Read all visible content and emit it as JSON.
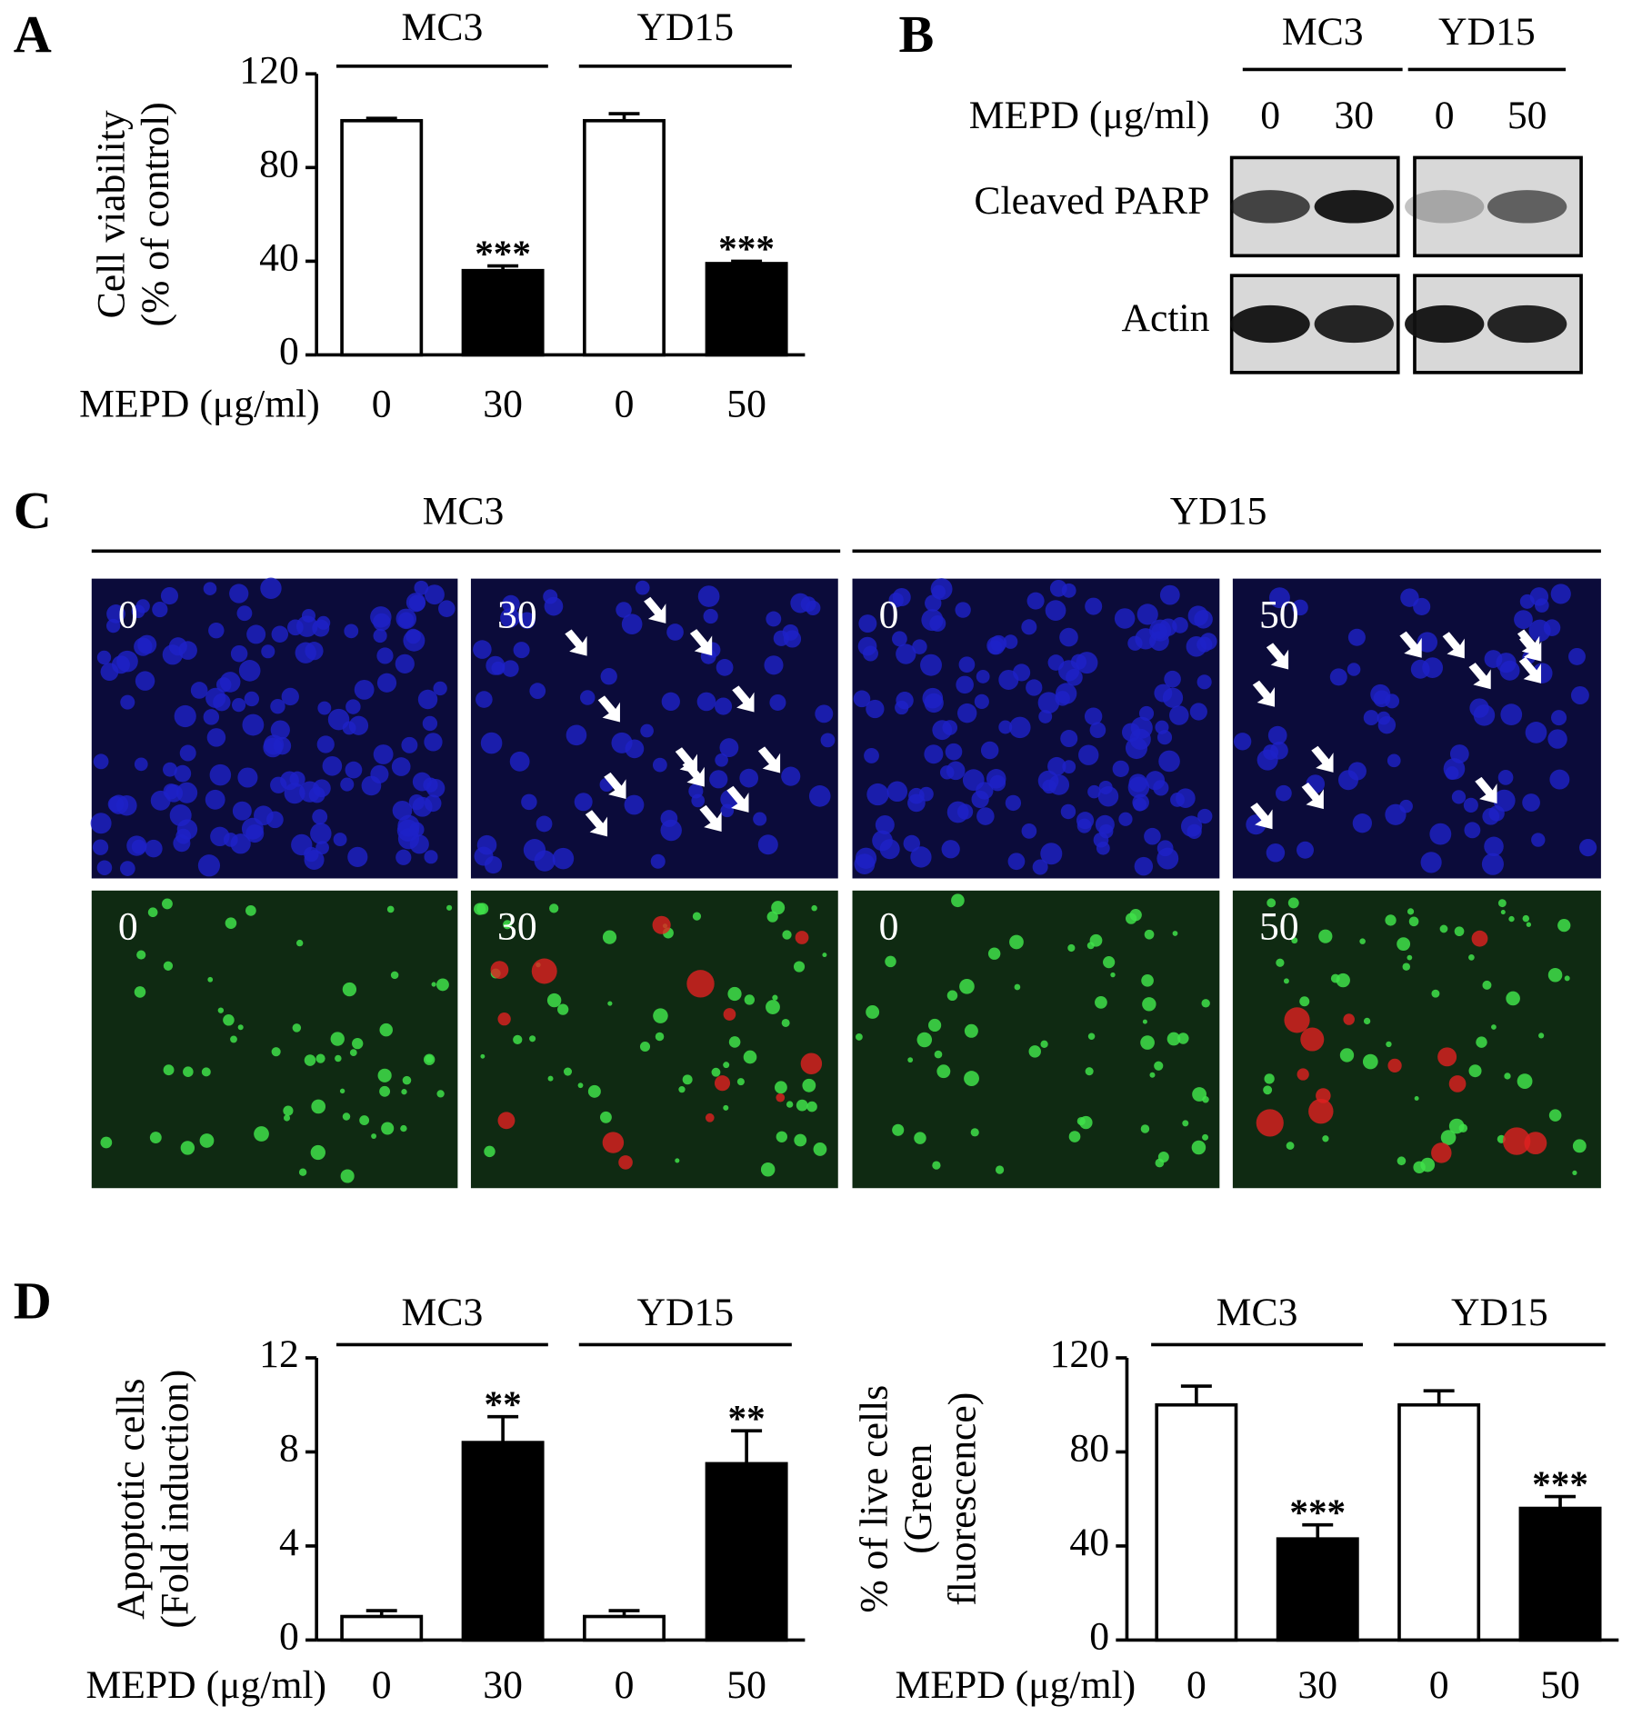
{
  "panel_labels": [
    "A",
    "B",
    "C",
    "D"
  ],
  "chart_data": [
    {
      "type": "bar",
      "ylabel": [
        "Cell viability",
        "(% of control)"
      ],
      "xlabel": "MEPD (μg/ml)",
      "groups": [
        "MC3",
        "YD15"
      ],
      "categories": [
        "0",
        "30",
        "0",
        "50"
      ],
      "values": [
        100,
        36,
        100,
        39
      ],
      "errors": [
        1,
        2,
        3,
        1
      ],
      "significance": [
        null,
        "***",
        null,
        "***"
      ],
      "colors": [
        "#ffffff",
        "#000000",
        "#ffffff",
        "#000000"
      ],
      "ylim": [
        0,
        120
      ],
      "yticks": [
        0,
        40,
        80,
        120
      ]
    },
    {
      "type": "bar",
      "ylabel": [
        "Apoptotic cells",
        "(Fold induction)"
      ],
      "xlabel": "MEPD (μg/ml)",
      "groups": [
        "MC3",
        "YD15"
      ],
      "categories": [
        "0",
        "30",
        "0",
        "50"
      ],
      "values": [
        1,
        8.4,
        1,
        7.5
      ],
      "errors": [
        0.25,
        1.1,
        0.25,
        1.4
      ],
      "significance": [
        null,
        "**",
        null,
        "**"
      ],
      "colors": [
        "#ffffff",
        "#000000",
        "#ffffff",
        "#000000"
      ],
      "ylim": [
        0,
        12
      ],
      "yticks": [
        0,
        4,
        8,
        12
      ]
    },
    {
      "type": "bar",
      "ylabel": [
        "% of live cells",
        "(Green",
        "fluorescence)"
      ],
      "xlabel": "MEPD (μg/ml)",
      "groups": [
        "MC3",
        "YD15"
      ],
      "categories": [
        "0",
        "30",
        "0",
        "50"
      ],
      "values": [
        100,
        43,
        100,
        56
      ],
      "errors": [
        8,
        6,
        6,
        5
      ],
      "significance": [
        null,
        "***",
        null,
        "***"
      ],
      "colors": [
        "#ffffff",
        "#000000",
        "#ffffff",
        "#000000"
      ],
      "ylim": [
        0,
        120
      ],
      "yticks": [
        0,
        40,
        80,
        120
      ]
    }
  ],
  "western_blot": {
    "cell_lines": [
      "MC3",
      "YD15"
    ],
    "treatment_label": "MEPD (μg/ml)",
    "doses": [
      "0",
      "30",
      "0",
      "50"
    ],
    "rows": [
      "Cleaved PARP",
      "Actin"
    ]
  },
  "microscopy": {
    "cell_lines": [
      "MC3",
      "YD15"
    ],
    "doses": [
      "0",
      "30",
      "0",
      "50"
    ]
  }
}
